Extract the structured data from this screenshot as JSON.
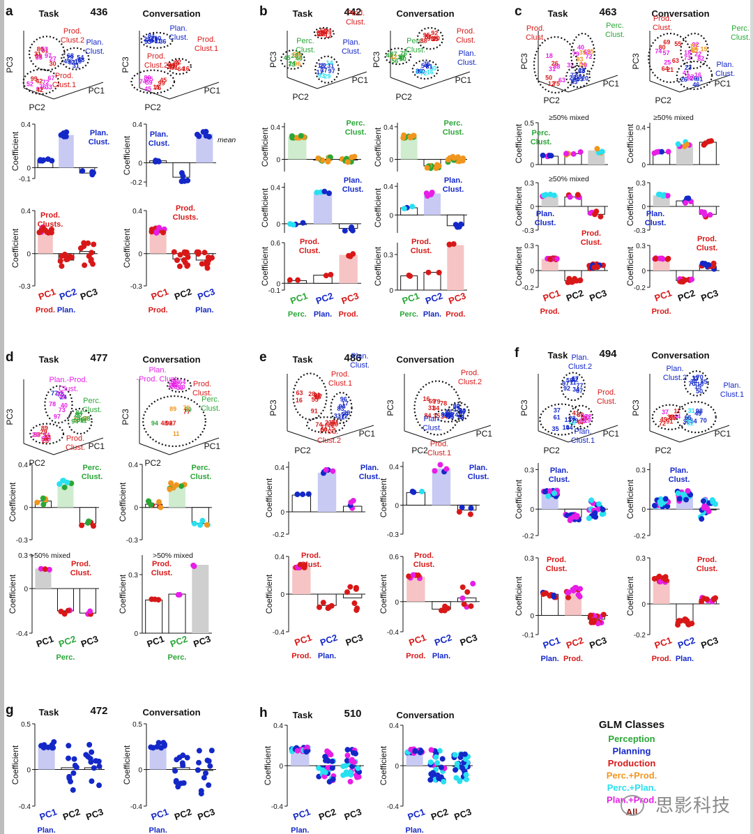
{
  "colors": {
    "perception": "#2aa637",
    "planning": "#1428c8",
    "production": "#d81818",
    "perc_prod": "#f0961e",
    "perc_plan": "#28e0f0",
    "plan_prod": "#e61ee6",
    "all": "#8b1a1a",
    "shade_prod": "#f6c4c4",
    "shade_plan": "#c8caf4",
    "shade_perc": "#cfeccf",
    "shade_mixed": "#cfcfcf"
  },
  "common": {
    "coefficient_label": "Coefficient",
    "pc1": "PC1",
    "pc2": "PC2",
    "pc3": "PC3",
    "prod": "Prod.",
    "plan": "Plan.",
    "perc": "Perc.",
    "task": "Task",
    "conversation": "Conversation",
    "mean": "mean"
  },
  "panels": [
    {
      "letter": "a",
      "num": "436",
      "notes": [
        "Prod. Clust.2",
        "Plan. Clust.",
        "Prod. Clust.1",
        "Plan. Clust.",
        "Prod. Clust.2",
        "Prod. Clust.1",
        "Prod. Clusts.",
        "Prod. Clusts."
      ]
    },
    {
      "letter": "b",
      "num": "442",
      "notes": [
        "Perc. Clust.",
        "Prod. Clust.",
        "Plan. Clust."
      ]
    },
    {
      "letter": "c",
      "num": "463",
      "notes": [
        "≥50% mixed",
        "Perc. Clust.",
        "Plan. Clust.",
        "Prod. Clust."
      ]
    },
    {
      "letter": "d",
      "num": "477",
      "notes": [
        "Plan.-Prod. Clust.",
        "Perc. Clust.",
        "Prod. Clust.",
        ">50% mixed"
      ]
    },
    {
      "letter": "e",
      "num": "486",
      "notes": [
        "Prod. Clust.1",
        "Prod. Clust.2",
        "Plan. Clust."
      ]
    },
    {
      "letter": "f",
      "num": "494",
      "notes": [
        "Plan. Clust.2",
        "Plan. Clust.1",
        "Prod. Clust."
      ]
    },
    {
      "letter": "g",
      "num": "472",
      "notes": []
    },
    {
      "letter": "h",
      "num": "510",
      "notes": []
    }
  ],
  "legend": {
    "title": "GLM Classes",
    "items": [
      {
        "label": "Perception",
        "color": "#2aa637"
      },
      {
        "label": "Planning",
        "color": "#1428c8"
      },
      {
        "label": "Production",
        "color": "#d81818"
      },
      {
        "label": "Perc.+Prod.",
        "color": "#f0961e"
      },
      {
        "label": "Perc.+Plan.",
        "color": "#28e0f0"
      },
      {
        "label": "Plan.+Prod.",
        "color": "#e61ee6"
      },
      {
        "label": "All",
        "color": "#8b1a1a"
      }
    ]
  },
  "watermark": "思影科技",
  "chart_data": [
    {
      "type": "bar",
      "id": "a-task-1",
      "categories": [
        "PC1",
        "PC2",
        "PC3"
      ],
      "values": [
        0.07,
        0.3,
        -0.05
      ],
      "ylim": [
        -0.1,
        0.4
      ],
      "ticks": [
        "0.4",
        "0",
        "-0.1"
      ],
      "annotation": "Plan. Clust."
    },
    {
      "type": "bar",
      "id": "a-conv-1",
      "categories": [
        "PC1",
        "PC2",
        "PC3"
      ],
      "values": [
        0.02,
        -0.15,
        0.3
      ],
      "ylim": [
        -0.25,
        0.4
      ],
      "ticks": [
        "0.4",
        "0",
        "-0.2"
      ],
      "annotation": "Plan. Clust.",
      "note": "mean"
    },
    {
      "type": "bar",
      "id": "a-task-2",
      "categories": [
        "PC1",
        "PC2",
        "PC3"
      ],
      "values": [
        0.22,
        -0.06,
        0.02
      ],
      "ylim": [
        -0.3,
        0.4
      ],
      "ticks": [
        "0.4",
        "0",
        "-0.3"
      ],
      "annotation": "Prod. Clusts.",
      "xlabels": [
        "PC1",
        "PC2",
        "PC3"
      ],
      "xsub": [
        "Prod.",
        "Plan.",
        ""
      ]
    },
    {
      "type": "bar",
      "id": "a-conv-2",
      "categories": [
        "PC1",
        "PC2",
        "PC3"
      ],
      "values": [
        0.22,
        -0.05,
        -0.06
      ],
      "ylim": [
        -0.3,
        0.4
      ],
      "ticks": [
        "0.4",
        "0",
        "-0.3"
      ],
      "annotation": "Prod. Clusts.",
      "xlabels": [
        "PC1",
        "PC2",
        "PC3"
      ],
      "xsub": [
        "Prod.",
        "",
        "Plan."
      ]
    },
    {
      "type": "bar",
      "id": "b-task-1",
      "values": [
        0.28,
        0.0,
        0.0
      ],
      "ylim": [
        -0.15,
        0.45
      ],
      "ticks": [
        "0.4",
        "0"
      ],
      "annotation": "Perc. Clust."
    },
    {
      "type": "bar",
      "id": "b-conv-1",
      "values": [
        0.28,
        -0.08,
        0.0
      ],
      "ylim": [
        -0.15,
        0.45
      ],
      "ticks": [
        "0.4",
        "0"
      ],
      "annotation": "Perc. Clust."
    },
    {
      "type": "bar",
      "id": "b-task-2",
      "values": [
        0.0,
        0.35,
        -0.05
      ],
      "ylim": [
        -0.1,
        0.45
      ],
      "ticks": [
        "0.4",
        "0"
      ],
      "annotation": "Plan. Clust."
    },
    {
      "type": "bar",
      "id": "b-conv-2",
      "values": [
        0.1,
        0.3,
        -0.15
      ],
      "ylim": [
        -0.25,
        0.45
      ],
      "ticks": [
        "0.4",
        "0"
      ],
      "annotation": "Plan. Clust."
    },
    {
      "type": "bar",
      "id": "b-task-3",
      "values": [
        0.04,
        0.12,
        0.42
      ],
      "ylim": [
        -0.1,
        0.6
      ],
      "ticks": [
        "0.6",
        "0",
        "-0.1"
      ],
      "annotation": "Prod. Clust.",
      "xsub": [
        "Perc.",
        "Plan.",
        "Prod."
      ]
    },
    {
      "type": "bar",
      "id": "b-conv-3",
      "values": [
        0.12,
        0.15,
        0.38
      ],
      "ylim": [
        0,
        0.4
      ],
      "ticks": [
        "0.3",
        "0"
      ],
      "annotation": "Prod. Clust.",
      "xsub": [
        "Perc.",
        "Plan.",
        "Prod."
      ]
    },
    {
      "type": "bar",
      "id": "c-task-1",
      "values": [
        0.1,
        0.13,
        0.17
      ],
      "ylim": [
        0,
        0.5
      ],
      "ticks": [
        "0.5",
        "0"
      ],
      "annotation": "Perc. Clust.",
      "note": "≥50% mixed"
    },
    {
      "type": "bar",
      "id": "c-conv-1",
      "values": [
        0.13,
        0.22,
        0.24
      ],
      "ylim": [
        0,
        0.45
      ],
      "ticks": [
        "0.4",
        "0"
      ],
      "note": "≥50% mixed"
    },
    {
      "type": "bar",
      "id": "c-task-2",
      "values": [
        0.14,
        0.12,
        -0.1
      ],
      "ylim": [
        -0.3,
        0.3
      ],
      "ticks": [
        "0.3",
        "0",
        "-0.3"
      ],
      "annotation": "Plan. Clust.",
      "note": "≥50% mixed"
    },
    {
      "type": "bar",
      "id": "c-conv-2",
      "values": [
        0.14,
        0.07,
        -0.1
      ],
      "ylim": [
        -0.3,
        0.3
      ],
      "ticks": [
        "0.3",
        "0",
        "-0.3"
      ],
      "annotation": "Plan. Clust."
    },
    {
      "type": "bar",
      "id": "c-task-3",
      "values": [
        0.14,
        -0.12,
        0.05
      ],
      "ylim": [
        -0.2,
        0.3
      ],
      "ticks": [
        "0.3",
        "0",
        "-0.2"
      ],
      "annotation": "Prod. Clust.",
      "xsub": [
        "Prod.",
        "",
        ""
      ]
    },
    {
      "type": "bar",
      "id": "c-conv-3",
      "values": [
        0.14,
        -0.12,
        0.05
      ],
      "ylim": [
        -0.2,
        0.3
      ],
      "ticks": [
        "0.3",
        "0",
        "-0.2"
      ],
      "annotation": "Prod. Clust.",
      "xsub": [
        "Prod.",
        "",
        ""
      ]
    },
    {
      "type": "bar",
      "id": "d-task-1",
      "values": [
        0.06,
        0.22,
        -0.15
      ],
      "ylim": [
        -0.3,
        0.4
      ],
      "ticks": [
        "0.4",
        "0",
        "-0.3"
      ],
      "annotation": "Perc. Clust."
    },
    {
      "type": "bar",
      "id": "d-conv-1",
      "values": [
        0.03,
        0.2,
        -0.15
      ],
      "ylim": [
        -0.3,
        0.4
      ],
      "ticks": [
        "0.4",
        "0",
        "-0.3"
      ],
      "annotation": "Perc. Clust."
    },
    {
      "type": "bar",
      "id": "d-task-2",
      "values": [
        0.18,
        -0.2,
        -0.22
      ],
      "ylim": [
        -0.4,
        0.3
      ],
      "ticks": [
        "0.3",
        "0",
        "-0.4"
      ],
      "annotation": "Prod. Clust.",
      "note": ">50% mixed",
      "xsub": [
        "",
        "Perc.",
        ""
      ]
    },
    {
      "type": "bar",
      "id": "d-conv-2",
      "values": [
        0.17,
        0.2,
        0.35
      ],
      "ylim": [
        0,
        0.4
      ],
      "ticks": [
        "0.3",
        "0"
      ],
      "annotation": "Prod. Clust.",
      "note": ">50% mixed",
      "xsub": [
        "",
        "Perc.",
        ""
      ]
    },
    {
      "type": "bar",
      "id": "e-task-1",
      "values": [
        0.15,
        0.35,
        0.05
      ],
      "ylim": [
        -0.2,
        0.45
      ],
      "ticks": [
        "0.4",
        "0",
        "-0.2"
      ],
      "annotation": "Plan. Clust."
    },
    {
      "type": "bar",
      "id": "e-conv-1",
      "values": [
        0.13,
        0.38,
        -0.05
      ],
      "ylim": [
        -0.3,
        0.45
      ],
      "ticks": [
        "0.4",
        "0",
        "-0.3"
      ],
      "annotation": "Plan. Clust."
    },
    {
      "type": "bar",
      "id": "e-task-2",
      "values": [
        0.3,
        -0.12,
        -0.04
      ],
      "ylim": [
        -0.4,
        0.4
      ],
      "ticks": [
        "0.4",
        "0",
        "-0.4"
      ],
      "annotation": "Prod. Clust.",
      "xsub": [
        "Prod.",
        "Plan.",
        ""
      ]
    },
    {
      "type": "bar",
      "id": "e-conv-2",
      "values": [
        0.33,
        -0.1,
        0.05
      ],
      "ylim": [
        -0.4,
        0.6
      ],
      "ticks": [
        "0.6",
        "0",
        "-0.4"
      ],
      "annotation": "Prod. Clust.",
      "xsub": [
        "Prod.",
        "Plan.",
        ""
      ]
    },
    {
      "type": "bar",
      "id": "f-task-1",
      "values": [
        0.12,
        -0.06,
        0.0
      ],
      "ylim": [
        -0.2,
        0.35
      ],
      "ticks": [
        "0.3",
        "0",
        "-0.2"
      ],
      "annotation": "Plan. Clust."
    },
    {
      "type": "bar",
      "id": "f-conv-1",
      "values": [
        0.05,
        0.1,
        0.0
      ],
      "ylim": [
        -0.2,
        0.35
      ],
      "ticks": [
        "0.3",
        "0",
        "-0.2"
      ],
      "annotation": "Plan. Clust."
    },
    {
      "type": "bar",
      "id": "f-task-2",
      "values": [
        0.11,
        0.12,
        -0.02
      ],
      "ylim": [
        -0.1,
        0.3
      ],
      "ticks": [
        "0.3",
        "0",
        "-0.1"
      ],
      "annotation": "Prod. Clust.",
      "xsub": [
        "Plan.",
        "Prod.",
        ""
      ]
    },
    {
      "type": "bar",
      "id": "f-conv-2",
      "values": [
        0.16,
        -0.12,
        0.03
      ],
      "ylim": [
        -0.2,
        0.3
      ],
      "ticks": [
        "0.3",
        "0",
        "-0.2"
      ],
      "annotation": "Prod. Clust.",
      "xsub": [
        "Prod.",
        "Plan.",
        ""
      ]
    },
    {
      "type": "bar",
      "id": "g-task",
      "values": [
        0.27,
        0.02,
        0.02
      ],
      "ylim": [
        -0.4,
        0.5
      ],
      "ticks": [
        "0.5",
        "0",
        "-0.4"
      ],
      "xsub": [
        "Plan.",
        "",
        ""
      ]
    },
    {
      "type": "bar",
      "id": "g-conv",
      "values": [
        0.27,
        0.02,
        -0.01
      ],
      "ylim": [
        -0.4,
        0.5
      ],
      "ticks": [
        "0.5",
        "0",
        "-0.4"
      ],
      "xsub": [
        "Plan.",
        "",
        ""
      ]
    },
    {
      "type": "bar",
      "id": "h-task",
      "values": [
        0.16,
        0.0,
        0.0
      ],
      "ylim": [
        -0.4,
        0.4
      ],
      "ticks": [
        "0.4",
        "0",
        "-0.4"
      ],
      "xsub": [
        "Plan.",
        "",
        ""
      ]
    },
    {
      "type": "bar",
      "id": "h-conv",
      "values": [
        0.14,
        0.0,
        0.0
      ],
      "ylim": [
        -0.4,
        0.4
      ],
      "ticks": [
        "0.4",
        "0",
        "-0.4"
      ],
      "xsub": [
        "Plan.",
        "",
        ""
      ]
    }
  ]
}
